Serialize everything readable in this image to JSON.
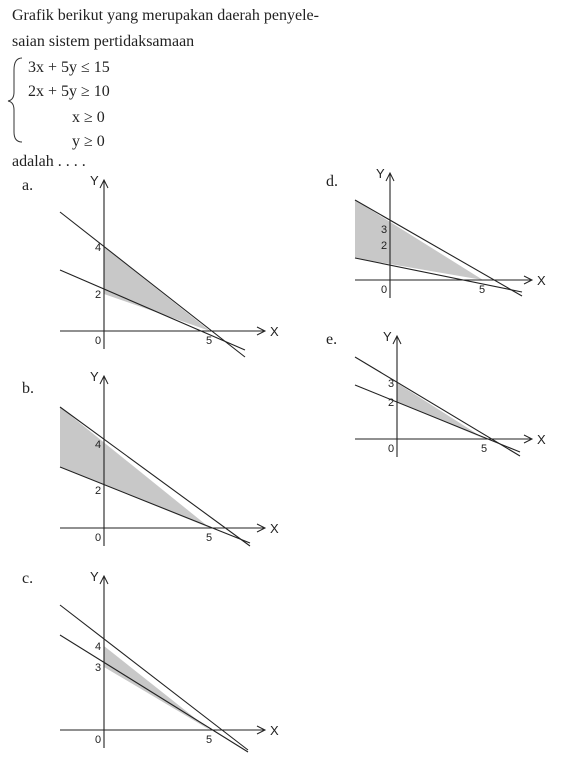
{
  "question": {
    "lines": [
      "Grafik berikut yang merupakan daerah penyele-",
      "saian sistem pertidaksamaan"
    ],
    "system": [
      "3x + 5y ≤ 15",
      "2x + 5y ≥ 10",
      "x ≥ 0",
      "y ≥ 0"
    ],
    "closing": "adalah . . . ."
  },
  "options": [
    {
      "label": "a.",
      "y_axis": "Y",
      "x_axis": "X",
      "origin": "0",
      "x_mark": "5",
      "y_marks": [
        "4",
        "2"
      ]
    },
    {
      "label": "b.",
      "y_axis": "Y",
      "x_axis": "X",
      "origin": "0",
      "x_mark": "5",
      "y_marks": [
        "4",
        "2"
      ]
    },
    {
      "label": "c.",
      "y_axis": "Y",
      "x_axis": "X",
      "origin": "0",
      "x_mark": "5",
      "y_marks": [
        "4",
        "3"
      ]
    },
    {
      "label": "d.",
      "y_axis": "Y",
      "x_axis": "X",
      "origin": "0",
      "x_mark": "5",
      "y_marks": [
        "3",
        "2"
      ]
    },
    {
      "label": "e.",
      "y_axis": "Y",
      "x_axis": "X",
      "origin": "0",
      "x_mark": "5",
      "y_marks": [
        "3",
        "2"
      ]
    }
  ]
}
